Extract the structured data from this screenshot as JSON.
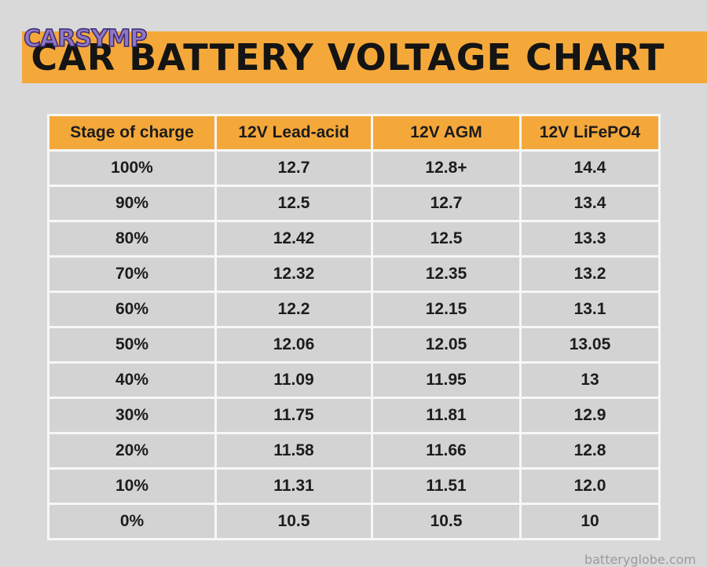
{
  "logo": {
    "text": "CARSYMP"
  },
  "chart_data": {
    "type": "table",
    "title": "CAR BATTERY VOLTAGE CHART",
    "columns": [
      "Stage of charge",
      "12V Lead-acid",
      "12V AGM",
      "12V LiFePO4"
    ],
    "rows": [
      [
        "100%",
        "12.7",
        "12.8+",
        "14.4"
      ],
      [
        "90%",
        "12.5",
        "12.7",
        "13.4"
      ],
      [
        "80%",
        "12.42",
        "12.5",
        "13.3"
      ],
      [
        "70%",
        "12.32",
        "12.35",
        "13.2"
      ],
      [
        "60%",
        "12.2",
        "12.15",
        "13.1"
      ],
      [
        "50%",
        "12.06",
        "12.05",
        "13.05"
      ],
      [
        "40%",
        "11.09",
        "11.95",
        "13"
      ],
      [
        "30%",
        "11.75",
        "11.81",
        "12.9"
      ],
      [
        "20%",
        "11.58",
        "11.66",
        "12.8"
      ],
      [
        "10%",
        "11.31",
        "11.51",
        "12.0"
      ],
      [
        "0%",
        "10.5",
        "10.5",
        "10"
      ]
    ]
  },
  "watermark": {
    "text": "batteryglobe.com"
  },
  "colors": {
    "header_orange": "#f5a83a",
    "cell_gray": "#d3d3d3",
    "background": "#d9d9d9",
    "logo_purple": "#8d78c4"
  }
}
